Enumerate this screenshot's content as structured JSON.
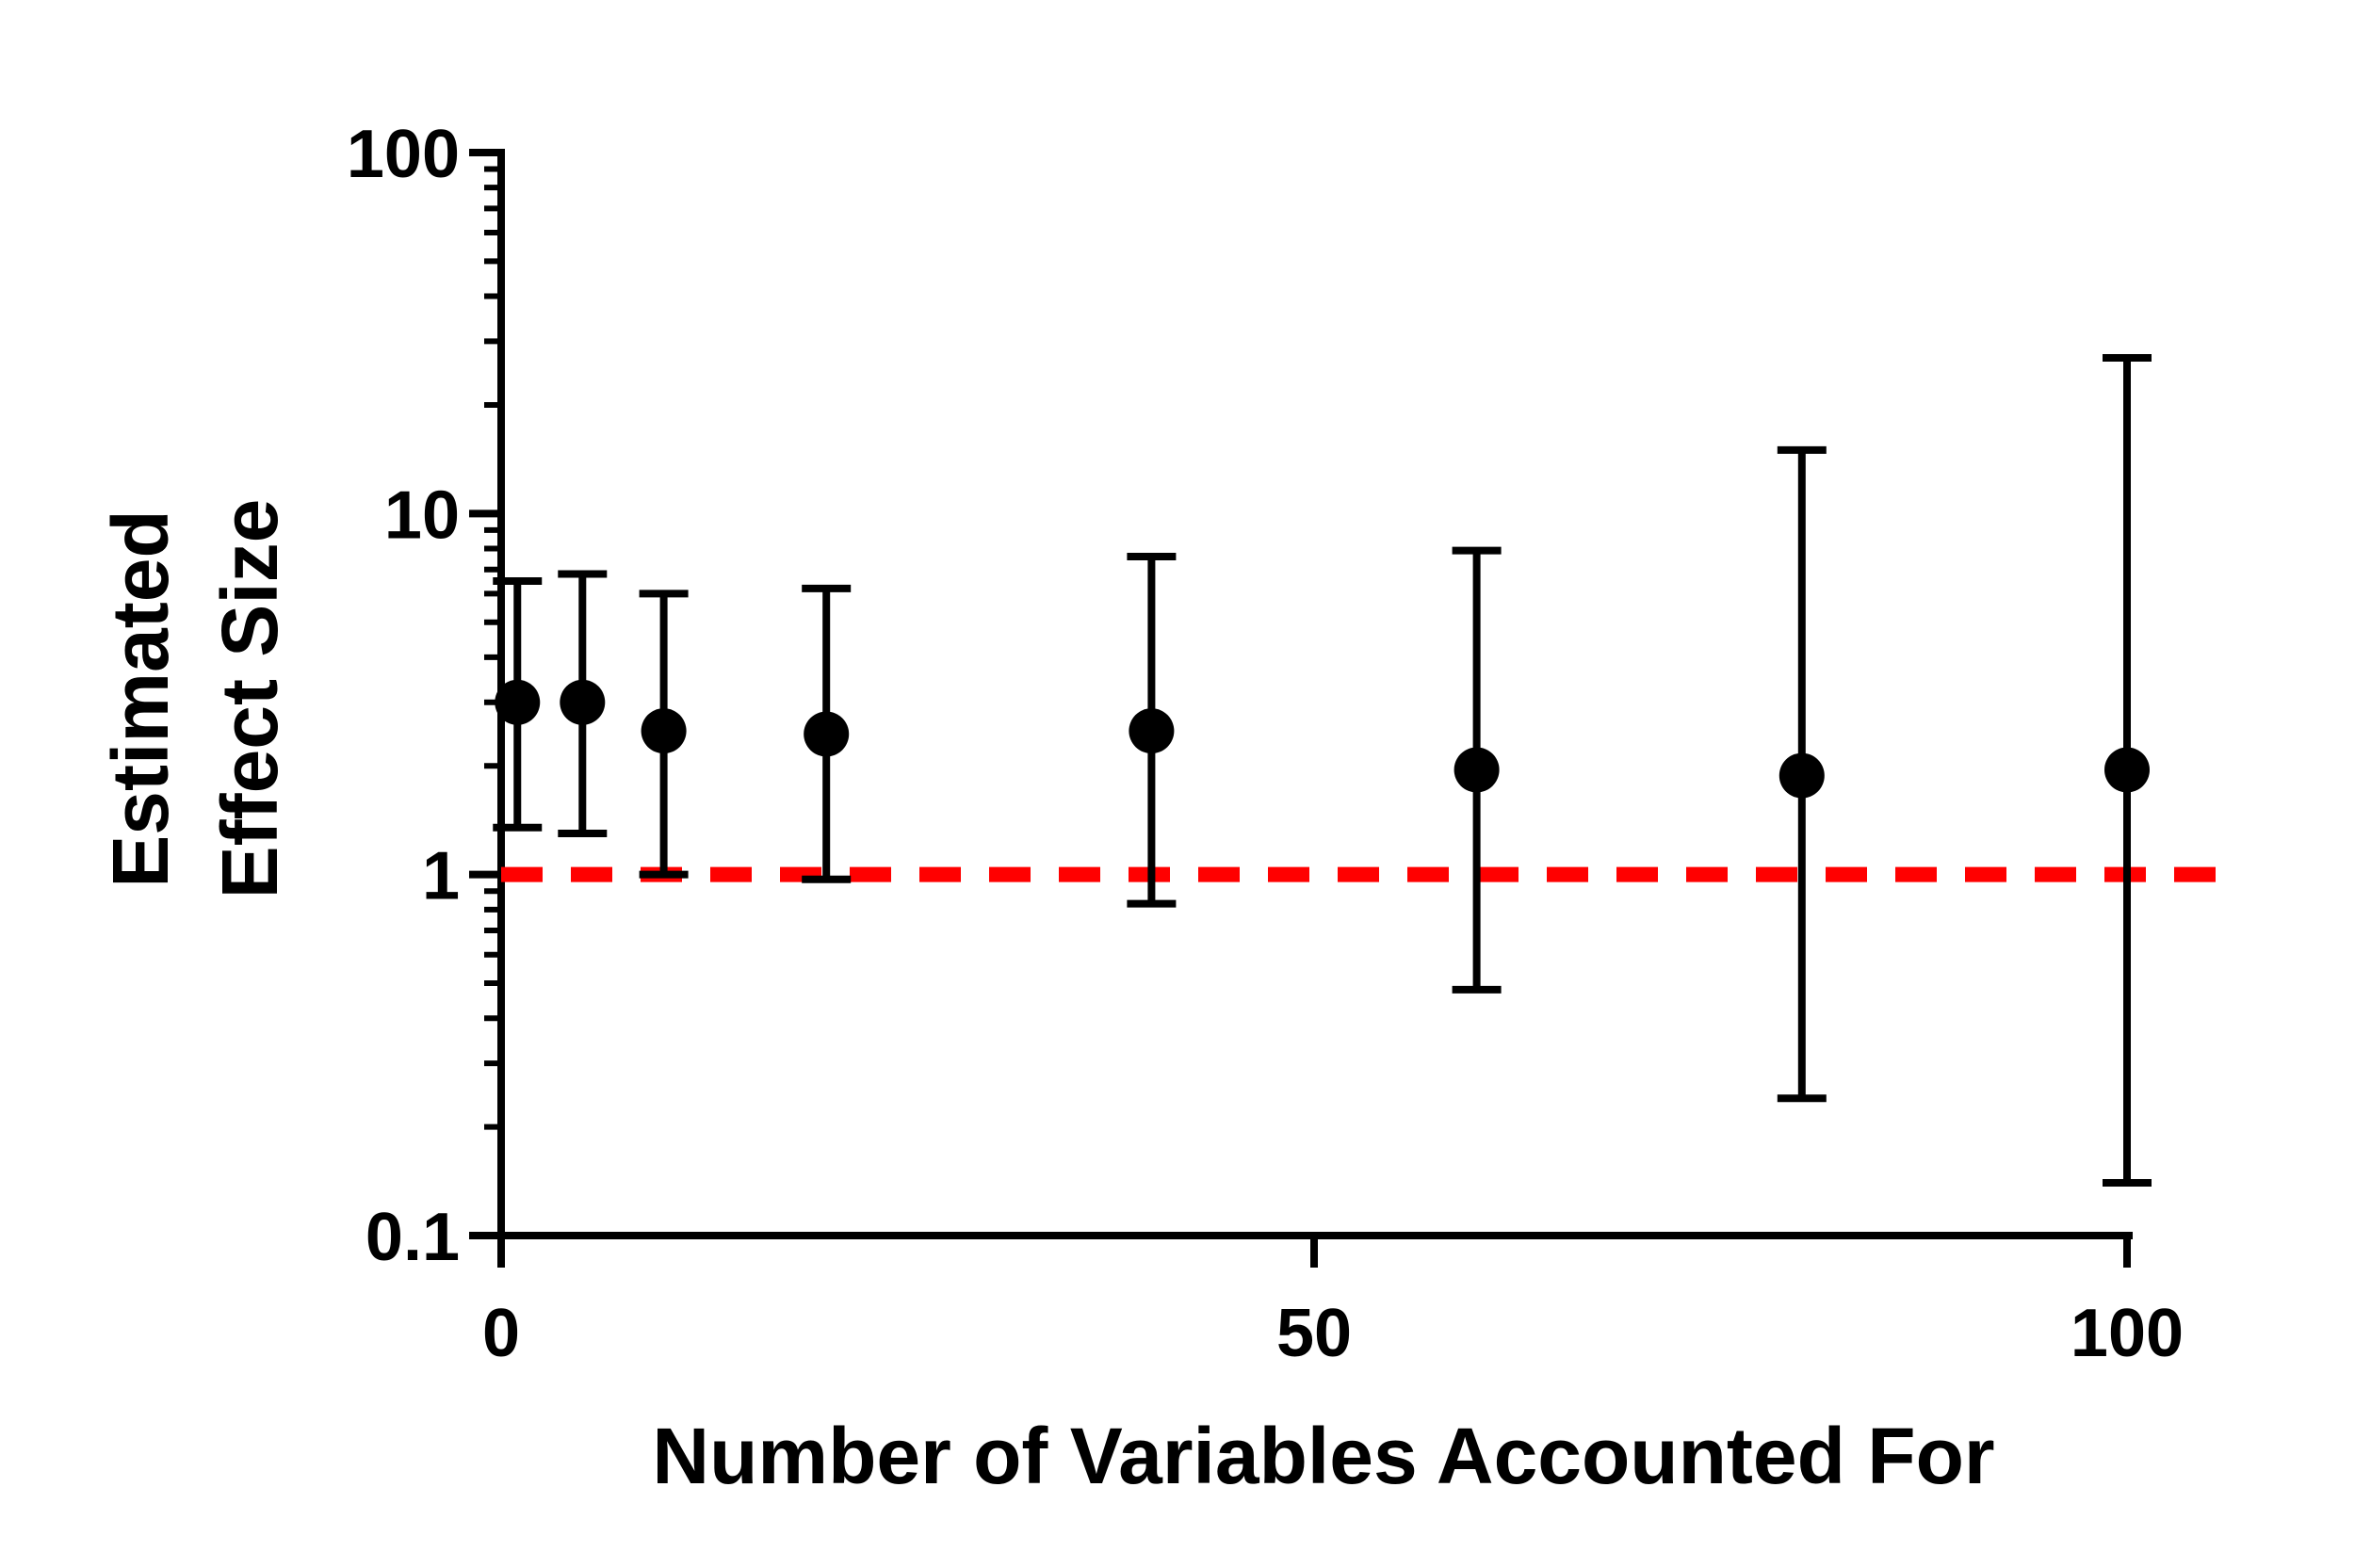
{
  "chart_data": {
    "type": "scatter",
    "title": "",
    "xlabel": "Number of Variables  Accounted For",
    "ylabel_lines": [
      "Estimated",
      "Effect Size"
    ],
    "xlim": [
      0,
      100
    ],
    "ylim": [
      0.1,
      100
    ],
    "yscale": "log",
    "x_ticks": [
      0,
      50,
      100
    ],
    "x_tick_labels": [
      "0",
      "50",
      "100"
    ],
    "y_ticks": [
      0.1,
      1,
      10,
      100
    ],
    "y_tick_labels": [
      "0.1",
      "1",
      "10",
      "100"
    ],
    "grid": false,
    "legend": "none",
    "reference_line": {
      "y": 1,
      "style": "dashed",
      "color": "#ff0000"
    },
    "marker_color": "#000000",
    "series": [
      {
        "points": [
          {
            "x": 1,
            "y": 3.0,
            "lower": 1.35,
            "upper": 6.5
          },
          {
            "x": 5,
            "y": 3.0,
            "lower": 1.3,
            "upper": 6.8
          },
          {
            "x": 10,
            "y": 2.5,
            "lower": 1.0,
            "upper": 6.0
          },
          {
            "x": 20,
            "y": 2.45,
            "lower": 0.97,
            "upper": 6.2
          },
          {
            "x": 40,
            "y": 2.5,
            "lower": 0.83,
            "upper": 7.6
          },
          {
            "x": 60,
            "y": 1.95,
            "lower": 0.48,
            "upper": 7.9
          },
          {
            "x": 80,
            "y": 1.88,
            "lower": 0.24,
            "upper": 15.0
          },
          {
            "x": 100,
            "y": 1.95,
            "lower": 0.14,
            "upper": 27.0
          }
        ]
      }
    ]
  }
}
